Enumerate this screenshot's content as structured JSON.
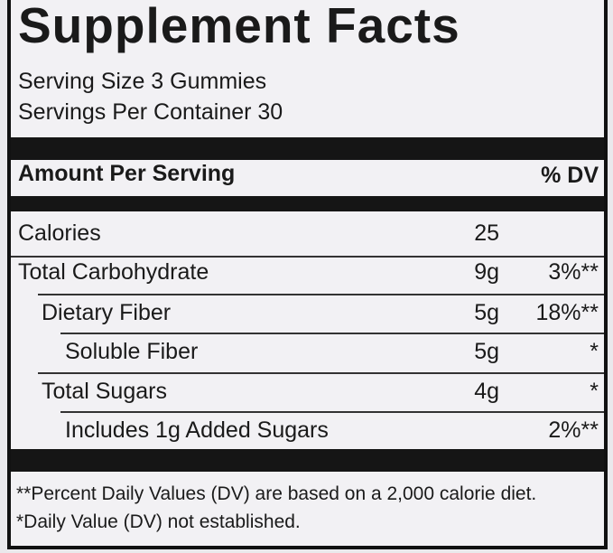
{
  "title": "Supplement Facts",
  "serving_size": "Serving Size 3 Gummies",
  "servings_per_container": "Servings Per Container 30",
  "table": {
    "header": {
      "left": "Amount Per Serving",
      "right": "% DV"
    },
    "rows": [
      {
        "name": "Calories",
        "amount": "25"
      },
      {
        "name": "Total Carbohydrate",
        "amount": "9g",
        "dv": "3%**"
      },
      {
        "name": "Dietary Fiber",
        "amount": "5g",
        "dv": "18%**"
      },
      {
        "name": "Soluble Fiber",
        "amount": "5g",
        "dv": "*"
      },
      {
        "name": "Total Sugars",
        "amount": "4g",
        "dv": "*"
      },
      {
        "name": "Includes 1g Added Sugars",
        "dv": "2%**"
      }
    ]
  },
  "footnotes": [
    "**Percent Daily Values (DV) are based on a 2,000 calorie diet.",
    "*Daily Value (DV) not established."
  ]
}
